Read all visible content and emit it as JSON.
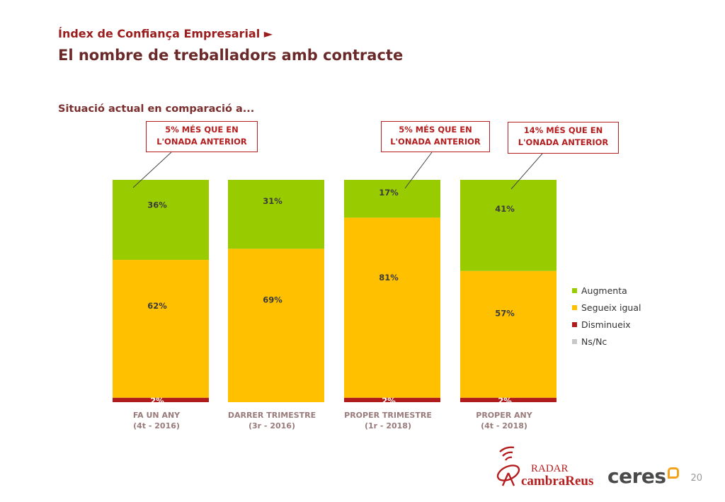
{
  "header": {
    "kicker": "Índex de Confiança Empresarial ►",
    "title": "El nombre de treballadors amb contracte",
    "subtitle": "Situació actual en comparació a..."
  },
  "callouts": [
    {
      "line1": "5% MÉS QUE EN",
      "line2": "L'ONADA ANTERIOR"
    },
    {
      "line1": "5% MÉS QUE EN",
      "line2": "L'ONADA ANTERIOR"
    },
    {
      "line1": "14% MÉS QUE EN",
      "line2": "L'ONADA ANTERIOR"
    }
  ],
  "chart_data": {
    "type": "bar",
    "stacked": true,
    "categories": [
      [
        "FA UN ANY",
        "(4t - 2016)"
      ],
      [
        "DARRER TRIMESTRE",
        "(3r - 2016)"
      ],
      [
        "PROPER TRIMESTRE",
        "(1r -  2018)"
      ],
      [
        "PROPER ANY",
        "(4t - 2018)"
      ]
    ],
    "series": [
      {
        "name": "Disminueix",
        "color": "#b01c1c",
        "values": [
          2,
          0,
          2,
          2
        ],
        "labels": [
          "2%",
          "",
          "2%",
          "2%"
        ]
      },
      {
        "name": "Segueix igual",
        "color": "#ffc000",
        "values": [
          62,
          69,
          81,
          57
        ],
        "labels": [
          "62%",
          "69%",
          "81%",
          "57%"
        ]
      },
      {
        "name": "Augmenta",
        "color": "#99cc00",
        "values": [
          36,
          31,
          17,
          41
        ],
        "labels": [
          "36%",
          "31%",
          "17%",
          "41%"
        ]
      },
      {
        "name": "Ns/Nc",
        "color": "#c8c8c8",
        "values": [
          0,
          0,
          0,
          0
        ],
        "labels": [
          "",
          "",
          "",
          ""
        ]
      }
    ],
    "ylim": [
      0,
      100
    ],
    "legend_position": "right",
    "grid": false
  },
  "legend": [
    {
      "label": "Augmenta",
      "color": "#99cc00"
    },
    {
      "label": "Segueix igual",
      "color": "#ffc000"
    },
    {
      "label": "Disminueix",
      "color": "#b01c1c"
    },
    {
      "label": "Ns/Nc",
      "color": "#c8c8c8"
    }
  ],
  "logos": {
    "radar_top": "RADAR",
    "radar_bottom": "cambraReus",
    "ceres": "ceres"
  },
  "page_number": "20"
}
